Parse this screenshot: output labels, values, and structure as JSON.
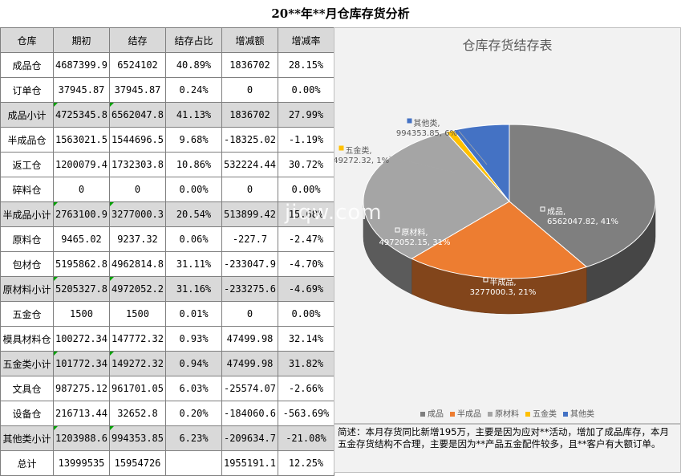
{
  "title": "20**年**月仓库存货分析",
  "table": {
    "headers": [
      "仓库",
      "期初",
      "结存",
      "结存占比",
      "增减额",
      "增减率"
    ],
    "rows": [
      {
        "cells": [
          "成品仓",
          "4687399.9",
          "6524102",
          "40.89%",
          "1836702",
          "28.15%"
        ],
        "type": "normal"
      },
      {
        "cells": [
          "订单仓",
          "37945.87",
          "37945.87",
          "0.24%",
          "0",
          "0.00%"
        ],
        "type": "normal"
      },
      {
        "cells": [
          "成品小计",
          "4725345.8",
          "6562047.8",
          "41.13%",
          "1836702",
          "27.99%"
        ],
        "type": "sub"
      },
      {
        "cells": [
          "半成品仓",
          "1563021.5",
          "1544696.5",
          "9.68%",
          "-18325.02",
          "-1.19%"
        ],
        "type": "normal"
      },
      {
        "cells": [
          "返工仓",
          "1200079.4",
          "1732303.8",
          "10.86%",
          "532224.44",
          "30.72%"
        ],
        "type": "normal"
      },
      {
        "cells": [
          "碎料仓",
          "0",
          "0",
          "0.00%",
          "0",
          "0.00%"
        ],
        "type": "normal"
      },
      {
        "cells": [
          "半成品小计",
          "2763100.9",
          "3277000.3",
          "20.54%",
          "513899.42",
          "15.68%"
        ],
        "type": "sub"
      },
      {
        "cells": [
          "原料仓",
          "9465.02",
          "9237.32",
          "0.06%",
          "-227.7",
          "-2.47%"
        ],
        "type": "normal"
      },
      {
        "cells": [
          "包材仓",
          "5195862.8",
          "4962814.8",
          "31.11%",
          "-233047.9",
          "-4.70%"
        ],
        "type": "normal"
      },
      {
        "cells": [
          "原材料小计",
          "5205327.8",
          "4972052.2",
          "31.16%",
          "-233275.6",
          "-4.69%"
        ],
        "type": "sub"
      },
      {
        "cells": [
          "五金仓",
          "1500",
          "1500",
          "0.01%",
          "0",
          "0.00%"
        ],
        "type": "normal"
      },
      {
        "cells": [
          "模具材料仓",
          "100272.34",
          "147772.32",
          "0.93%",
          "47499.98",
          "32.14%"
        ],
        "type": "normal"
      },
      {
        "cells": [
          "五金类小计",
          "101772.34",
          "149272.32",
          "0.94%",
          "47499.98",
          "31.82%"
        ],
        "type": "sub"
      },
      {
        "cells": [
          "文具仓",
          "987275.12",
          "961701.05",
          "6.03%",
          "-25574.07",
          "-2.66%"
        ],
        "type": "normal"
      },
      {
        "cells": [
          "设备仓",
          "216713.44",
          "32652.8",
          "0.20%",
          "-184060.6",
          "-563.69%"
        ],
        "type": "normal"
      },
      {
        "cells": [
          "其他类小计",
          "1203988.6",
          "994353.85",
          "6.23%",
          "-209634.7",
          "-21.08%"
        ],
        "type": "sub"
      },
      {
        "cells": [
          "总计",
          "13999535",
          "15954726",
          "",
          "1955191.1",
          "12.25%"
        ],
        "type": "total"
      }
    ]
  },
  "chart_data": {
    "type": "pie",
    "title": "仓库存货结存表",
    "slices": [
      {
        "name": "成品",
        "value": 6562047.82,
        "percent": "41%",
        "label": "成品, 6562047.82, 41%",
        "color": "#7f7f7f"
      },
      {
        "name": "半成品",
        "value": 3277000.3,
        "percent": "21%",
        "label": "半成品, 3277000.3, 21%",
        "color": "#ed7d31"
      },
      {
        "name": "原材料",
        "value": 4972052.15,
        "percent": "31%",
        "label": "原材料, 4972052.15, 31%",
        "color": "#a5a5a5"
      },
      {
        "name": "五金类",
        "value": 149272.32,
        "percent": "1%",
        "label": "五金类, 149272.32, 1%",
        "color": "#ffc000"
      },
      {
        "name": "其他类",
        "value": 994353.85,
        "percent": "6%",
        "label": "其他类, 994353.85, 6%",
        "color": "#4472c4"
      }
    ],
    "legend": [
      "成品",
      "半成品",
      "原材料",
      "五金类",
      "其他类"
    ],
    "legend_position": "bottom"
  },
  "note": "简述：本月存货同比新增195万，主要是因为应对**活动，增加了成品库存，本月五金存货结构不合理，主要是因为**产品五金配件较多，且**客户有大额订单。",
  "watermark": "jiqw.com"
}
